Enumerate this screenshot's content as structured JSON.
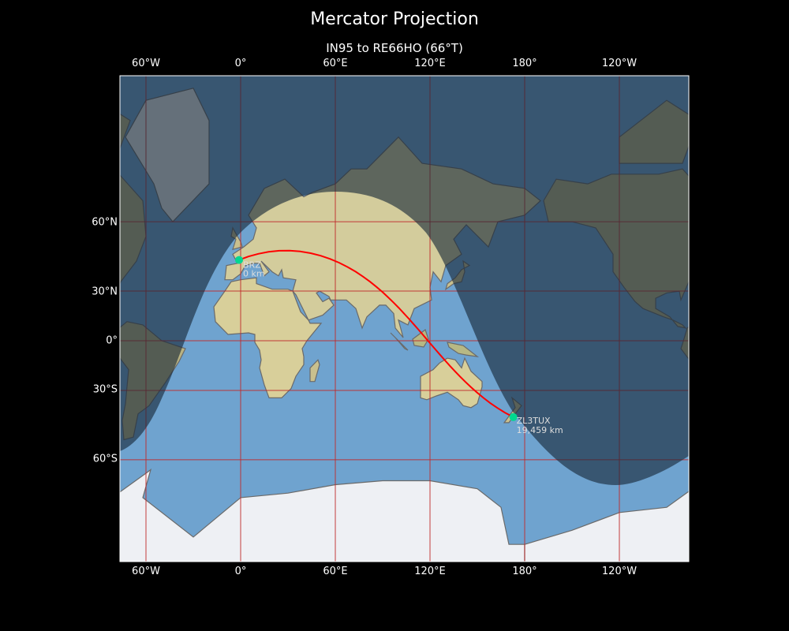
{
  "title": "Mercator Projection",
  "subtitle": "IN95 to RE66HO (66°T)",
  "axes": {
    "lon_ticks": [
      "60°W",
      "0°",
      "60°E",
      "120°E",
      "180°",
      "120°W"
    ],
    "lat_ticks": [
      "60°N",
      "30°N",
      "0°",
      "30°S",
      "60°S"
    ]
  },
  "map": {
    "projection": "Mercator",
    "central_longitude": 104,
    "lon_range": [
      -76.5,
      283.5
    ],
    "lat_range": [
      -80,
      84.5
    ],
    "day_night_overlay": true,
    "colors": {
      "route": "#ff0000",
      "marker": "#00d890",
      "gridline": "#c0282a",
      "label": "#dddddd"
    }
  },
  "route": {
    "from": {
      "call": "BRZ",
      "distance": "0 km",
      "grid": "IN95",
      "lon": -1,
      "lat": 45.5
    },
    "to": {
      "call": "ZL3TUX",
      "distance": "19,459 km",
      "grid": "RE66HO",
      "lon": 172.8,
      "lat": -43.5
    },
    "bearing": "66°T"
  }
}
